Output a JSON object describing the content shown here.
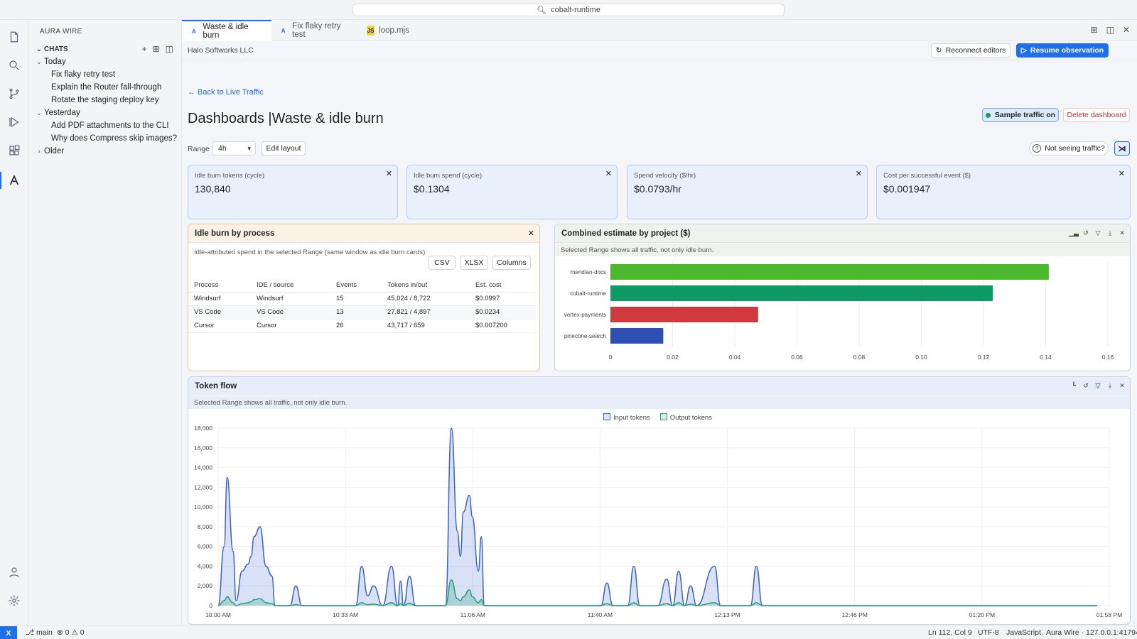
{
  "search": {
    "text": "cobalt-runtime"
  },
  "sidebar": {
    "title": "AURA WIRE",
    "section": "CHATS",
    "groups": [
      {
        "label": "Today",
        "items": [
          "Fix flaky retry test",
          "Explain the Router fall-through",
          "Rotate the staging deploy key"
        ]
      },
      {
        "label": "Yesterday",
        "items": [
          "Add PDF attachments to the CLI",
          "Why does Compress skip images?"
        ]
      },
      {
        "label": "Older",
        "items": []
      }
    ]
  },
  "tabs": [
    {
      "label": "Waste & idle burn",
      "icon": "A",
      "active": true
    },
    {
      "label": "Fix flaky retry test",
      "icon": "A",
      "active": false
    },
    {
      "label": "loop.mjs",
      "icon": "JS",
      "active": false
    }
  ],
  "header": {
    "company": "Halo Softworks LLC",
    "reconnect": "Reconnect editors",
    "resume": "Resume observation",
    "back": "← Back to Live Traffic",
    "title": "Dashboards |Waste & idle burn",
    "sample": "Sample traffic on",
    "delete": "Delete dashboard",
    "range_label": "Range",
    "range_value": "4h",
    "edit_layout": "Edit layout",
    "not_seeing": "Not seeing traffic?"
  },
  "kpis": [
    {
      "label": "Idle burn tokens (cycle)",
      "value": "130,840"
    },
    {
      "label": "Idle burn spend (cycle)",
      "value": "$0.1304"
    },
    {
      "label": "Spend velocity ($/hr)",
      "value": "$0.0793/hr"
    },
    {
      "label": "Cost per successful event ($)",
      "value": "$0.001947"
    }
  ],
  "idle_panel": {
    "title": "Idle burn by process",
    "note": "Idle-attributed spend in the selected Range (same window as idle burn cards).",
    "buttons": [
      "CSV",
      "XLSX",
      "Columns"
    ],
    "columns": [
      "Process",
      "IDE / source",
      "Events",
      "Tokens in/out",
      "Est. cost"
    ],
    "rows": [
      [
        "Windsurf",
        "Windsurf",
        "15",
        "45,024 / 8,722",
        "$0.0997"
      ],
      [
        "VS Code",
        "VS Code",
        "13",
        "27,821 / 4,897",
        "$0.0234"
      ],
      [
        "Cursor",
        "Cursor",
        "26",
        "43,717 / 659",
        "$0.007200"
      ]
    ]
  },
  "project_panel": {
    "title": "Combined estimate by project ($)",
    "note": "Selected Range shows all traffic, not only idle burn."
  },
  "flow_panel": {
    "title": "Token flow",
    "note": "Selected Range shows all traffic, not only idle burn."
  },
  "colors": {
    "accent": "#1f6feb",
    "input": "#3a63c8",
    "output": "#22a07a",
    "bars": [
      "#4cb82d",
      "#0e9a66",
      "#cf3a3e",
      "#2f4fb7"
    ]
  },
  "chart_data": [
    {
      "type": "bar",
      "orientation": "horizontal",
      "title": "Combined estimate by project ($)",
      "categories": [
        "meridian-docs",
        "cobalt-runtime",
        "vertex-payments",
        "pinecone-search"
      ],
      "values": [
        0.141,
        0.123,
        0.0475,
        0.017
      ],
      "xlim": [
        0,
        0.16
      ],
      "xticks": [
        "0",
        "0.02",
        "0.04",
        "0.06",
        "0.08",
        "0.10",
        "0.12",
        "0.14",
        "0.16"
      ],
      "grid": true
    },
    {
      "type": "area",
      "title": "Token flow",
      "legend": [
        "Input tokens",
        "Output tokens"
      ],
      "legend_position": "top-center",
      "ylim": [
        0,
        18000
      ],
      "yticks": [
        "0",
        "2,000",
        "4,000",
        "6,000",
        "8,000",
        "10,000",
        "12,000",
        "14,000",
        "16,000",
        "18,000"
      ],
      "xticks": [
        "10:00 AM",
        "10:33 AM",
        "11:06 AM",
        "11:40 AM",
        "12:13 PM",
        "12:46 PM",
        "01:20 PM",
        "01:58 PM"
      ],
      "x_minutes": [
        0,
        2,
        3,
        5,
        6,
        8,
        10,
        11,
        12,
        14,
        16,
        18,
        19,
        21,
        23,
        24,
        26,
        28,
        30,
        36,
        38,
        40,
        46,
        48,
        50,
        52,
        55,
        58,
        60,
        61,
        62,
        64,
        66,
        68,
        69,
        70,
        72,
        74,
        76,
        78,
        80,
        81,
        82,
        84,
        85,
        87,
        88,
        89,
        94,
        96,
        98,
        104,
        106,
        108,
        114,
        116,
        118,
        120,
        122,
        124,
        126,
        128,
        130,
        132,
        135,
        137,
        139,
        141,
        143,
        145,
        147,
        150,
        152,
        154,
        156,
        158,
        160,
        166,
        168,
        170,
        176,
        178,
        180,
        182,
        184,
        186,
        188,
        190,
        192,
        194,
        196,
        200,
        202,
        204,
        206,
        208,
        210,
        212,
        214,
        216,
        218,
        220,
        222,
        224,
        226,
        228,
        230,
        232,
        234,
        236,
        238,
        240,
        242,
        244,
        246,
        248,
        250,
        252,
        254,
        256,
        258,
        260,
        262,
        264,
        266,
        268,
        270,
        272,
        274,
        276,
        278,
        280,
        282,
        284,
        286,
        288,
        290,
        292,
        294,
        296,
        298
      ],
      "series": [
        {
          "name": "Input tokens",
          "values": [
            0,
            6000,
            13000,
            5500,
            500,
            3500,
            4200,
            5000,
            7000,
            8000,
            4000,
            3000,
            0,
            0,
            0,
            0,
            2000,
            0,
            0,
            0,
            0,
            0,
            0,
            4000,
            1000,
            2000,
            0,
            4000,
            0,
            2500,
            0,
            3000,
            0,
            0,
            0,
            0,
            0,
            0,
            0,
            18000,
            7500,
            5000,
            9500,
            11200,
            9000,
            3500,
            7000,
            0,
            0,
            0,
            0,
            0,
            0,
            0,
            0,
            0,
            0,
            0,
            0,
            0,
            0,
            0,
            2300,
            0,
            0,
            0,
            4000,
            0,
            0,
            0,
            0,
            2700,
            0,
            3500,
            0,
            2000,
            0,
            4000,
            0,
            0,
            0,
            0,
            4000,
            0,
            0,
            0,
            0,
            0,
            0,
            0,
            0,
            0,
            0,
            0,
            0,
            0,
            0,
            0,
            0,
            0,
            0,
            0,
            0,
            0,
            0,
            0,
            0,
            0,
            0,
            0,
            0,
            0,
            0,
            0,
            0,
            0,
            0,
            0,
            0,
            0,
            0,
            0,
            0,
            0,
            0,
            0,
            0,
            0,
            0,
            0,
            0,
            0,
            0,
            0,
            0,
            0,
            0,
            0,
            0
          ]
        },
        {
          "name": "Output tokens",
          "values": [
            0,
            500,
            900,
            300,
            0,
            200,
            300,
            400,
            600,
            700,
            300,
            200,
            0,
            0,
            0,
            0,
            100,
            0,
            0,
            0,
            0,
            0,
            0,
            300,
            100,
            150,
            0,
            300,
            0,
            200,
            0,
            250,
            0,
            0,
            0,
            0,
            0,
            0,
            0,
            2600,
            700,
            500,
            900,
            1600,
            900,
            300,
            600,
            0,
            0,
            0,
            0,
            0,
            0,
            0,
            0,
            0,
            0,
            0,
            0,
            0,
            0,
            0,
            200,
            0,
            0,
            0,
            300,
            0,
            0,
            0,
            0,
            200,
            0,
            300,
            0,
            150,
            0,
            300,
            0,
            0,
            0,
            0,
            300,
            0,
            0,
            0,
            0,
            0,
            0,
            0,
            0,
            0,
            0,
            0,
            0,
            0,
            0,
            0,
            0,
            0,
            0,
            0,
            0,
            0,
            0,
            0,
            0,
            0,
            0,
            0,
            0,
            0,
            0,
            0,
            0,
            0,
            0,
            0,
            0,
            0,
            0,
            0,
            0,
            0,
            0,
            0,
            0,
            0,
            0,
            0,
            0,
            0,
            0,
            0,
            0,
            0,
            0,
            0,
            0
          ]
        }
      ]
    }
  ],
  "status": {
    "remote": "X",
    "branch": "main",
    "problems": "⊗ 0 ⚠ 0",
    "cursor": "Ln 112, Col 9",
    "encoding": "UTF-8",
    "language": "JavaScript",
    "server": "Aura Wire · 127.0.0.1:41794"
  }
}
